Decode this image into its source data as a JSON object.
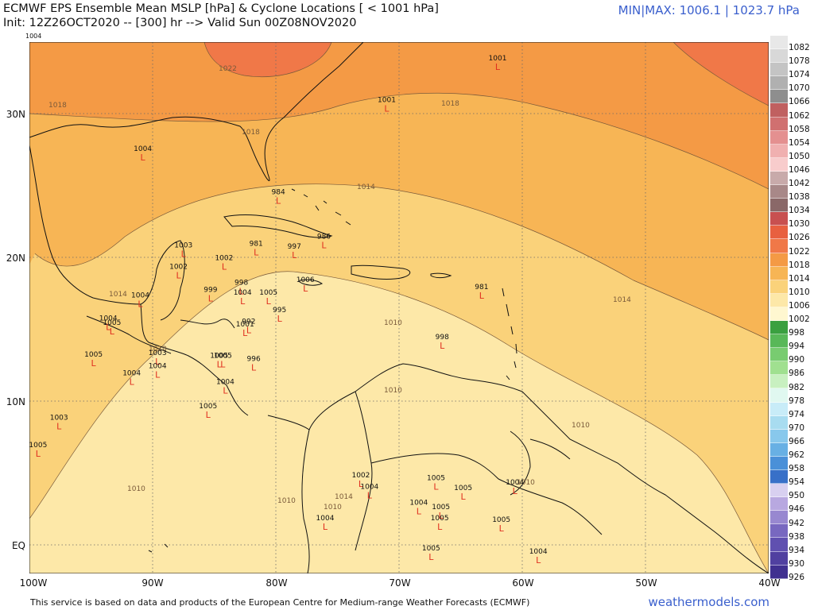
{
  "header": {
    "title": "ECMWF EPS Ensemble Mean MSLP [hPa] & Cyclone Locations [ < 1001 hPa]",
    "subtitle": "Init: 12Z26OCT2020 -- [300] hr --> Valid Sun 00Z08NOV2020",
    "minmax": "MIN|MAX: 1006.1 | 1023.7 hPa",
    "corner_value": "1004"
  },
  "axes": {
    "lat_labels": [
      "30N",
      "20N",
      "10N",
      "EQ"
    ],
    "lon_labels": [
      "100W",
      "90W",
      "80W",
      "70W",
      "60W",
      "50W",
      "40W"
    ]
  },
  "colorbar": {
    "levels": [
      "1082",
      "1078",
      "1074",
      "1070",
      "1066",
      "1062",
      "1058",
      "1054",
      "1050",
      "1046",
      "1042",
      "1038",
      "1034",
      "1030",
      "1026",
      "1022",
      "1018",
      "1014",
      "1010",
      "1006",
      "1002",
      "998",
      "994",
      "990",
      "986",
      "982",
      "978",
      "974",
      "970",
      "966",
      "962",
      "958",
      "954",
      "950",
      "946",
      "942",
      "938",
      "934",
      "930",
      "926"
    ],
    "colors": [
      "#e8e8e8",
      "#d8d8d8",
      "#c4c4c4",
      "#b0b0b0",
      "#8e8e8e",
      "#c06060",
      "#d07070",
      "#e49090",
      "#f0b0b0",
      "#f8cccc",
      "#c8aaaa",
      "#a88888",
      "#8a6868",
      "#c85050",
      "#e86040",
      "#f07848",
      "#f49a45",
      "#f7b555",
      "#fad27a",
      "#fde8a8",
      "#fff7d0",
      "#3aa040",
      "#58b858",
      "#78cc70",
      "#a0e090",
      "#c8f0c0",
      "#e0f8f0",
      "#c8ecf8",
      "#a8dcf0",
      "#88c8ec",
      "#68b0e4",
      "#4a90d8",
      "#3870c8",
      "#d8d0f0",
      "#b8a8e0",
      "#9888d0",
      "#7868c0",
      "#6050b0",
      "#5040a0",
      "#403090"
    ]
  },
  "contours": {
    "labels": [
      "1022",
      "1018",
      "1018",
      "1018",
      "1014",
      "1014",
      "1014",
      "1010",
      "1010",
      "1010",
      "1010",
      "1010",
      "1010",
      "1014",
      "1010",
      "1010"
    ]
  },
  "cyclones": [
    {
      "value": "1001",
      "lon": -62,
      "lat": 33.7
    },
    {
      "value": "1001",
      "lon": -71,
      "lat": 30.8
    },
    {
      "value": "1004",
      "lon": -90.8,
      "lat": 27.4
    },
    {
      "value": "984",
      "lon": -79.8,
      "lat": 24.4
    },
    {
      "value": "986",
      "lon": -76.1,
      "lat": 21.3
    },
    {
      "value": "997",
      "lon": -78.5,
      "lat": 20.6
    },
    {
      "value": "981",
      "lon": -81.6,
      "lat": 20.8
    },
    {
      "value": "1003",
      "lon": -87.5,
      "lat": 20.7
    },
    {
      "value": "1002",
      "lon": -84.2,
      "lat": 19.8
    },
    {
      "value": "1002",
      "lon": -87.9,
      "lat": 19.2
    },
    {
      "value": "998",
      "lon": -82.8,
      "lat": 18.1
    },
    {
      "value": "999",
      "lon": -85.3,
      "lat": 17.6
    },
    {
      "value": "1004",
      "lon": -82.7,
      "lat": 17.4
    },
    {
      "value": "1005",
      "lon": -80.6,
      "lat": 17.4
    },
    {
      "value": "1004",
      "lon": -91,
      "lat": 17.2
    },
    {
      "value": "1006",
      "lon": -77.6,
      "lat": 18.3
    },
    {
      "value": "981",
      "lon": -63.3,
      "lat": 17.8
    },
    {
      "value": "995",
      "lon": -79.7,
      "lat": 16.2
    },
    {
      "value": "992",
      "lon": -82.2,
      "lat": 15.4
    },
    {
      "value": "1001",
      "lon": -82.5,
      "lat": 15.2
    },
    {
      "value": "998",
      "lon": -66.5,
      "lat": 14.3
    },
    {
      "value": "1005",
      "lon": -94.8,
      "lat": 13.1
    },
    {
      "value": "1003",
      "lon": -89.6,
      "lat": 13.2
    },
    {
      "value": "1005",
      "lon": -84.6,
      "lat": 13
    },
    {
      "value": "1005",
      "lon": -84.3,
      "lat": 13
    },
    {
      "value": "996",
      "lon": -81.8,
      "lat": 12.8
    },
    {
      "value": "1004",
      "lon": -91.7,
      "lat": 11.8
    },
    {
      "value": "1004",
      "lon": -89.6,
      "lat": 12.3
    },
    {
      "value": "1004",
      "lon": -84.1,
      "lat": 11.2
    },
    {
      "value": "1005",
      "lon": -85.5,
      "lat": 9.5
    },
    {
      "value": "1003",
      "lon": -97.6,
      "lat": 8.7
    },
    {
      "value": "1005",
      "lon": -99.3,
      "lat": 6.8
    },
    {
      "value": "1002",
      "lon": -73.1,
      "lat": 4.7
    },
    {
      "value": "1004",
      "lon": -72.4,
      "lat": 3.9
    },
    {
      "value": "1005",
      "lon": -67,
      "lat": 4.5
    },
    {
      "value": "1005",
      "lon": -64.8,
      "lat": 3.8
    },
    {
      "value": "1004",
      "lon": -60.6,
      "lat": 4.2
    },
    {
      "value": "1004",
      "lon": -68.4,
      "lat": 2.8
    },
    {
      "value": "1005",
      "lon": -66.6,
      "lat": 2.5
    },
    {
      "value": "1005",
      "lon": -66.7,
      "lat": 1.7
    },
    {
      "value": "1005",
      "lon": -61.7,
      "lat": 1.6
    },
    {
      "value": "1004",
      "lon": -76,
      "lat": 1.7
    },
    {
      "value": "1005",
      "lon": -67.4,
      "lat": -0.4
    },
    {
      "value": "1004",
      "lon": -58.7,
      "lat": -0.6
    },
    {
      "value": "1004",
      "lon": -93.6,
      "lat": 15.6
    },
    {
      "value": "1005",
      "lon": -93.3,
      "lat": 15.3
    }
  ],
  "footer": {
    "disclaimer": "This service is based on data and products of the European Centre for Medium-range Weather Forecasts (ECMWF)",
    "brand": "weathermodels.com"
  }
}
